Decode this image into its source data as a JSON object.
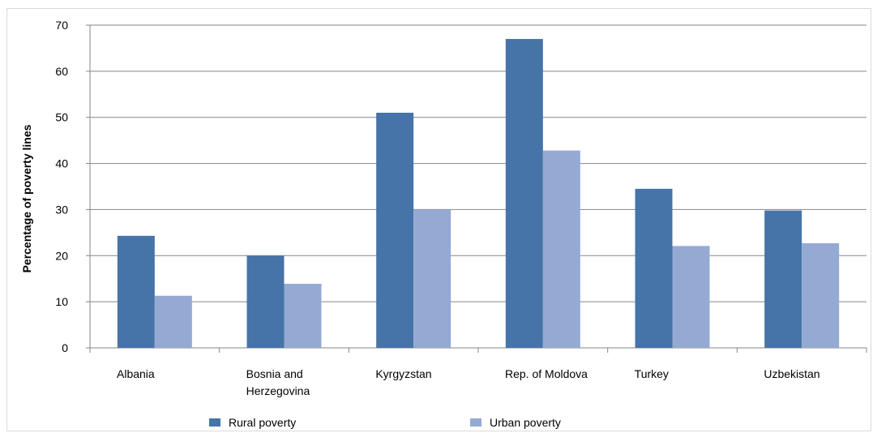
{
  "chart_data": {
    "type": "bar",
    "title": "",
    "xlabel": "",
    "ylabel": "Percentage of poverty lines",
    "ylim": [
      0,
      70
    ],
    "yticks": [
      0,
      10,
      20,
      30,
      40,
      50,
      60,
      70
    ],
    "grid": true,
    "legend_position": "bottom",
    "categories": [
      "Albania",
      "Bosnia and Herzegovina",
      "Kyrgyzstan",
      "Rep. of Moldova",
      "Turkey",
      "Uzbekistan"
    ],
    "category_lines": [
      [
        "Albania"
      ],
      [
        "Bosnia and",
        "Herzegovina"
      ],
      [
        "Kyrgyzstan"
      ],
      [
        "Rep. of Moldova"
      ],
      [
        "Turkey"
      ],
      [
        "Uzbekistan"
      ]
    ],
    "series": [
      {
        "name": "Rural poverty",
        "color": "#4674a8",
        "values": [
          24.3,
          20.0,
          51.0,
          67.0,
          34.5,
          29.8
        ]
      },
      {
        "name": "Urban poverty",
        "color": "#95aad3",
        "values": [
          11.3,
          13.9,
          30.0,
          42.8,
          22.1,
          22.7
        ]
      }
    ]
  }
}
